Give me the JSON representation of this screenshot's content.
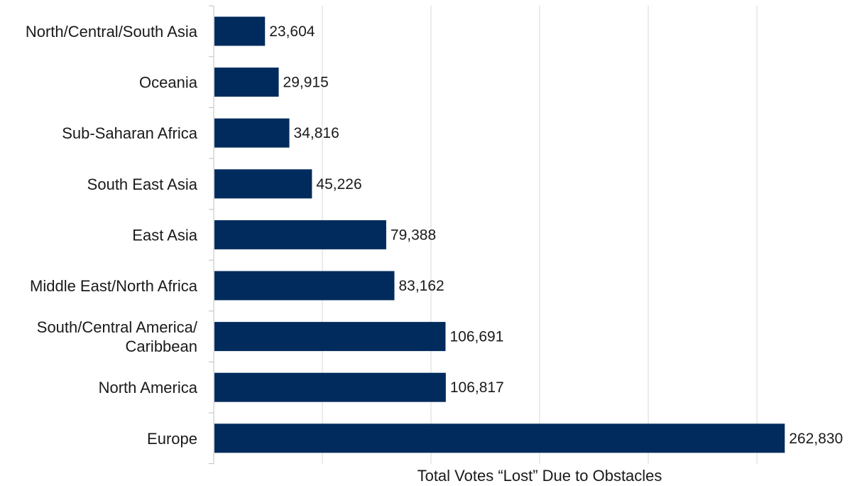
{
  "chart_data": {
    "type": "bar",
    "orientation": "horizontal",
    "title": "",
    "xlabel": "Total Votes “Lost” Due to Obstacles",
    "ylabel": "",
    "xlim": [
      0,
      300000
    ],
    "grid": true,
    "legend": "none",
    "bar_color": "#002B5C",
    "categories": [
      [
        "North/Central/South Asia"
      ],
      [
        "Oceania"
      ],
      [
        "Sub-Saharan Africa"
      ],
      [
        "South East Asia"
      ],
      [
        "East Asia"
      ],
      [
        "Middle East/North Africa"
      ],
      [
        "South/Central America/",
        "Caribbean"
      ],
      [
        "North America"
      ],
      [
        "Europe"
      ]
    ],
    "values": [
      23604,
      29915,
      34816,
      45226,
      79388,
      83162,
      106691,
      106817,
      262830
    ],
    "data_labels": [
      "23,604",
      "29,915",
      "34,816",
      "45,226",
      "79,388",
      "83,162",
      "106,691",
      "106,817",
      "262,830"
    ]
  }
}
